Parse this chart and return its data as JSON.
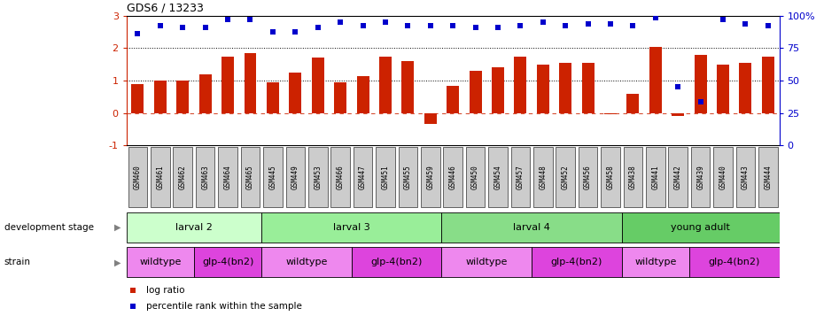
{
  "title": "GDS6 / 13233",
  "samples": [
    "GSM460",
    "GSM461",
    "GSM462",
    "GSM463",
    "GSM464",
    "GSM465",
    "GSM445",
    "GSM449",
    "GSM453",
    "GSM466",
    "GSM447",
    "GSM451",
    "GSM455",
    "GSM459",
    "GSM446",
    "GSM450",
    "GSM454",
    "GSM457",
    "GSM448",
    "GSM452",
    "GSM456",
    "GSM458",
    "GSM438",
    "GSM441",
    "GSM442",
    "GSM439",
    "GSM440",
    "GSM443",
    "GSM444"
  ],
  "log_ratio": [
    0.9,
    1.0,
    1.0,
    1.2,
    1.75,
    1.85,
    0.95,
    1.25,
    1.7,
    0.95,
    1.15,
    1.75,
    1.6,
    -0.35,
    0.85,
    1.3,
    1.4,
    1.75,
    1.5,
    1.55,
    1.55,
    -0.05,
    0.6,
    2.05,
    -0.1,
    1.8,
    1.5,
    1.55,
    1.75
  ],
  "percentile_left_scale": [
    2.45,
    2.7,
    2.65,
    2.65,
    2.9,
    2.9,
    2.5,
    2.5,
    2.65,
    2.8,
    2.7,
    2.8,
    2.7,
    2.7,
    2.7,
    2.65,
    2.65,
    2.7,
    2.8,
    2.7,
    2.75,
    2.75,
    2.7,
    2.95,
    0.8,
    0.35,
    2.9,
    2.75,
    2.7
  ],
  "bar_color": "#cc2200",
  "dot_color": "#0000cc",
  "tick_bg_color": "#cccccc",
  "ylim_left": [
    -1,
    3
  ],
  "ylim_right": [
    0,
    100
  ],
  "development_stages": [
    {
      "label": "larval 2",
      "start": 0,
      "end": 5,
      "color": "#ccffcc"
    },
    {
      "label": "larval 3",
      "start": 6,
      "end": 13,
      "color": "#99ee99"
    },
    {
      "label": "larval 4",
      "start": 14,
      "end": 21,
      "color": "#88dd88"
    },
    {
      "label": "young adult",
      "start": 22,
      "end": 28,
      "color": "#66cc66"
    }
  ],
  "strains": [
    {
      "label": "wildtype",
      "start": 0,
      "end": 2,
      "color": "#ee88ee"
    },
    {
      "label": "glp-4(bn2)",
      "start": 3,
      "end": 5,
      "color": "#dd44dd"
    },
    {
      "label": "wildtype",
      "start": 6,
      "end": 9,
      "color": "#ee88ee"
    },
    {
      "label": "glp-4(bn2)",
      "start": 10,
      "end": 13,
      "color": "#dd44dd"
    },
    {
      "label": "wildtype",
      "start": 14,
      "end": 17,
      "color": "#ee88ee"
    },
    {
      "label": "glp-4(bn2)",
      "start": 18,
      "end": 21,
      "color": "#dd44dd"
    },
    {
      "label": "wildtype",
      "start": 22,
      "end": 24,
      "color": "#ee88ee"
    },
    {
      "label": "glp-4(bn2)",
      "start": 25,
      "end": 28,
      "color": "#dd44dd"
    }
  ],
  "legend_bar_label": "log ratio",
  "legend_dot_label": "percentile rank within the sample",
  "fig_width": 9.21,
  "fig_height": 3.57
}
